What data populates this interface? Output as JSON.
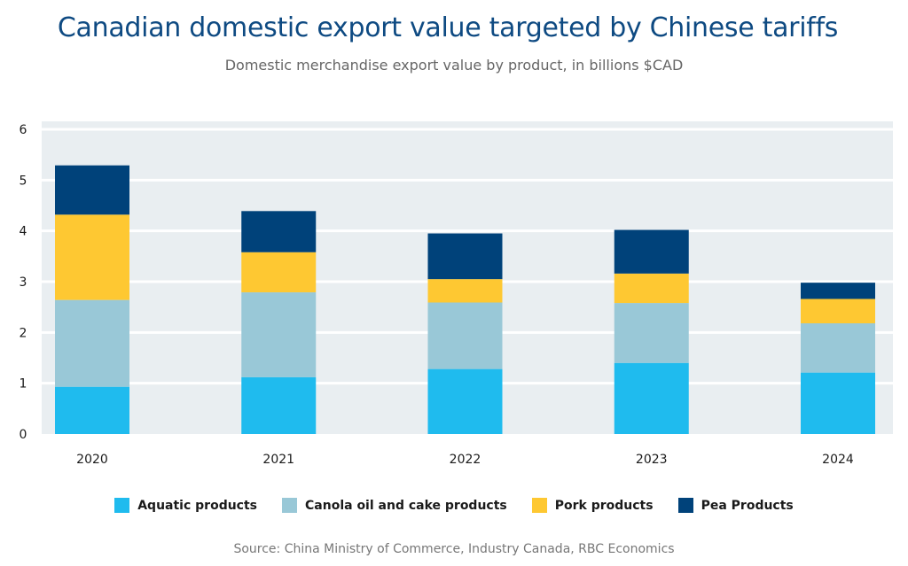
{
  "title": "Canadian domestic export value targeted by Chinese tariffs",
  "subtitle": "Domestic merchandise export value by product, in billions $CAD",
  "source": "Source: China Ministry of Commerce, Industry Canada, RBC Economics",
  "colors": {
    "plot_background": "#e9eef1",
    "gridline": "#ffffff",
    "title": "#0e4a82"
  },
  "chart_data": {
    "type": "bar",
    "stacked": true,
    "categories": [
      "2020",
      "2021",
      "2022",
      "2023",
      "2024"
    ],
    "series": [
      {
        "name": "Aquatic products",
        "color": "#1fbbee",
        "values": [
          0.93,
          1.12,
          1.28,
          1.4,
          1.21
        ]
      },
      {
        "name": "Canola oil and cake products",
        "color": "#99c8d7",
        "values": [
          1.71,
          1.67,
          1.31,
          1.18,
          0.97
        ]
      },
      {
        "name": "Pork products",
        "color": "#fec832",
        "values": [
          1.68,
          0.79,
          0.46,
          0.58,
          0.48
        ]
      },
      {
        "name": "Pea Products",
        "color": "#00427a",
        "values": [
          0.97,
          0.81,
          0.9,
          0.86,
          0.32
        ]
      }
    ],
    "ylim": [
      0,
      6
    ],
    "yticks": [
      0,
      1,
      2,
      3,
      4,
      5,
      6
    ],
    "xlabel": "",
    "ylabel": "",
    "grid": true,
    "legend": "bottom"
  }
}
